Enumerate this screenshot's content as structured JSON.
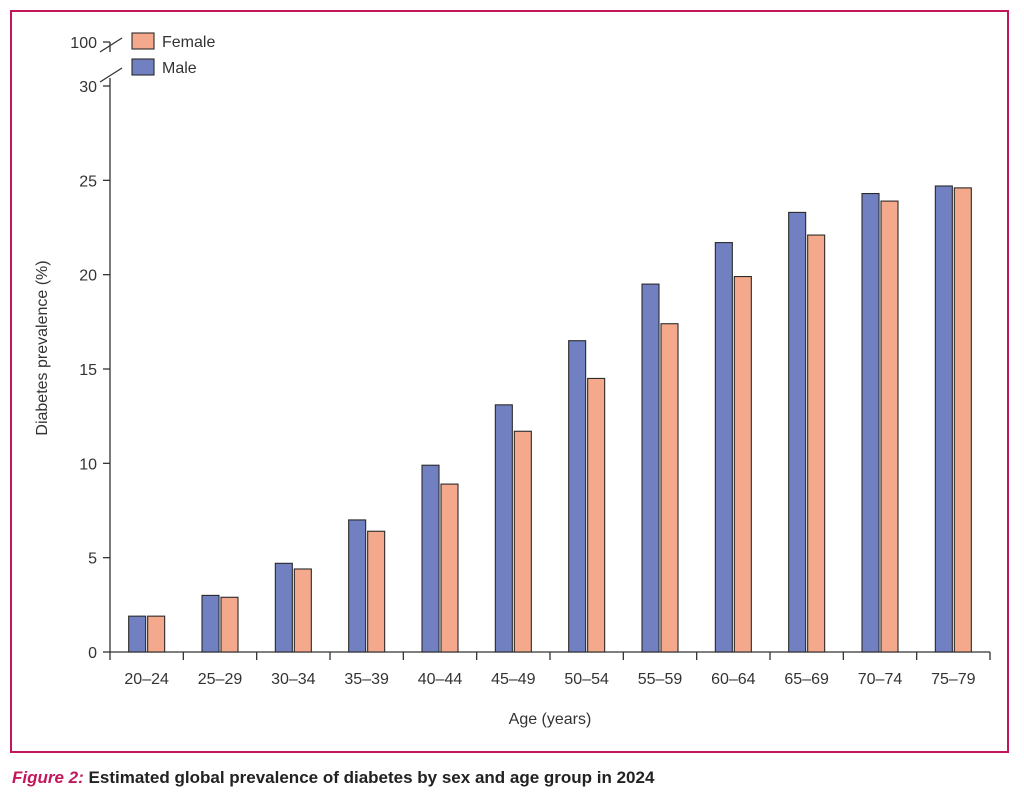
{
  "chart_data": {
    "type": "bar",
    "title": "",
    "xlabel": "Age (years)",
    "ylabel": "Diabetes prevalence (%)",
    "ylim": [
      0,
      30
    ],
    "yticks": [
      "0",
      "5",
      "10",
      "15",
      "20",
      "25",
      "30"
    ],
    "ybreak_label": "100",
    "categories": [
      "20–24",
      "25–29",
      "30–34",
      "35–39",
      "40–44",
      "45–49",
      "50–54",
      "55–59",
      "60–64",
      "65–69",
      "70–74",
      "75–79"
    ],
    "series": [
      {
        "name": "Male",
        "color": "#7180c0",
        "values": [
          1.9,
          3.0,
          4.7,
          7.0,
          9.9,
          13.1,
          16.5,
          19.5,
          21.7,
          23.3,
          24.3,
          24.7
        ]
      },
      {
        "name": "Female",
        "color": "#f4a98c",
        "values": [
          1.9,
          2.9,
          4.4,
          6.4,
          8.9,
          11.7,
          14.5,
          17.4,
          19.9,
          22.1,
          23.9,
          24.6
        ]
      }
    ],
    "legend": [
      {
        "name": "Female",
        "color": "#f4a98c"
      },
      {
        "name": "Male",
        "color": "#7180c0"
      }
    ],
    "legend_position": "top-left"
  },
  "caption": {
    "label": "Figure 2:",
    "text": " Estimated global prevalence of diabetes by sex and age group in 2024"
  }
}
